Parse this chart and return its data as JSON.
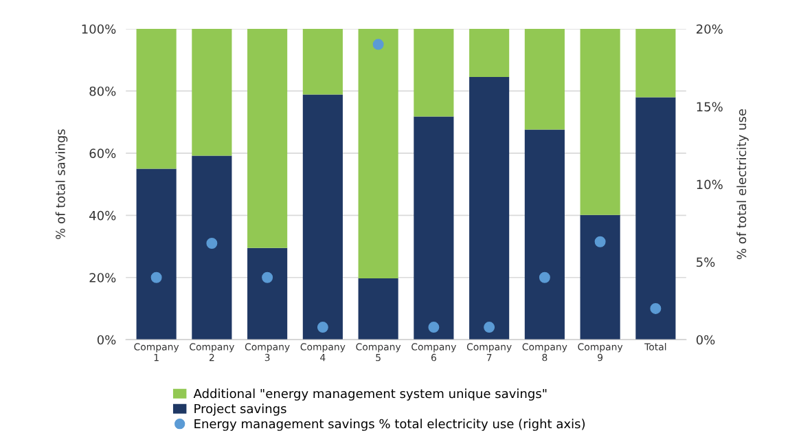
{
  "chart_data": {
    "type": "bar",
    "stacked": true,
    "ylabel": "% of total savings",
    "y2label": "% of total electricity use",
    "categories": [
      "Company\n1",
      "Company\n2",
      "Company\n3",
      "Company\n4",
      "Company\n5",
      "Company\n6",
      "Company\n7",
      "Company\n8",
      "Company\n9",
      "Total"
    ],
    "series": [
      {
        "name": "Project savings",
        "color": "#1f3864",
        "values": [
          55.0,
          59.2,
          29.5,
          78.9,
          19.7,
          71.8,
          84.5,
          67.6,
          40.1,
          78.0
        ]
      },
      {
        "name": "Additional \"energy management system unique savings\"",
        "color": "#92c853",
        "values": [
          45.0,
          40.8,
          70.5,
          21.1,
          80.3,
          28.2,
          15.5,
          32.4,
          59.9,
          22.0
        ]
      },
      {
        "name": "Energy management savings % total electricity use (right axis)",
        "type": "scatter",
        "axis": "y2",
        "color": "#5b9bd5",
        "marker": "circle",
        "values": [
          4.0,
          6.2,
          4.0,
          0.8,
          19.0,
          0.8,
          0.8,
          4.0,
          6.3,
          2.0
        ]
      }
    ],
    "ylim": [
      0,
      100
    ],
    "yticks": [
      {
        "value": 0,
        "label": "0%"
      },
      {
        "value": 20,
        "label": "20%"
      },
      {
        "value": 40,
        "label": "40%"
      },
      {
        "value": 60,
        "label": "60%"
      },
      {
        "value": 80,
        "label": "80%"
      },
      {
        "value": 100,
        "label": "100%"
      }
    ],
    "y2lim": [
      0,
      20
    ],
    "y2ticks": [
      {
        "value": 0,
        "label": "0%"
      },
      {
        "value": 5,
        "label": "5%"
      },
      {
        "value": 10,
        "label": "10%"
      },
      {
        "value": 15,
        "label": "15%"
      },
      {
        "value": 20,
        "label": "20%"
      }
    ],
    "grid": "y",
    "legend": "bottom"
  }
}
